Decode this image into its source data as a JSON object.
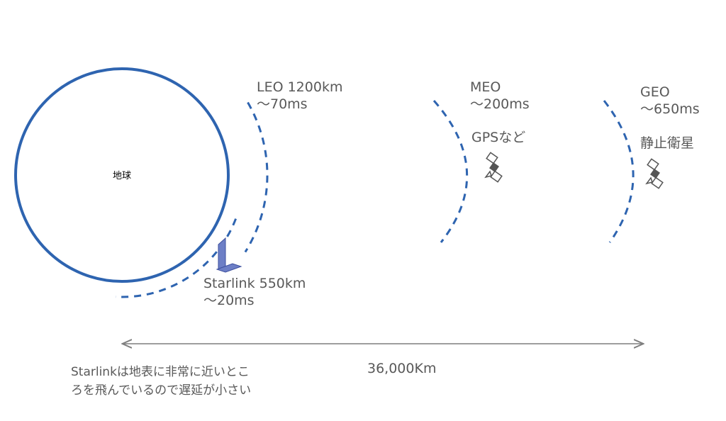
{
  "earth": {
    "label": "地球"
  },
  "orbits": [
    {
      "name": "LEO 1200km",
      "latency": "～70ms"
    },
    {
      "name": "MEO",
      "latency": "～200ms",
      "note": "GPSなど"
    },
    {
      "name": "GEO",
      "latency": "～650ms",
      "note": "静止衛星"
    },
    {
      "name": "Starlink 550km",
      "latency": "～20ms"
    }
  ],
  "distance": "36,000Km",
  "caption": [
    "Starlinkは地表に非常に近いとこ",
    "ろを飛んでいるので遅延が小さい"
  ]
}
